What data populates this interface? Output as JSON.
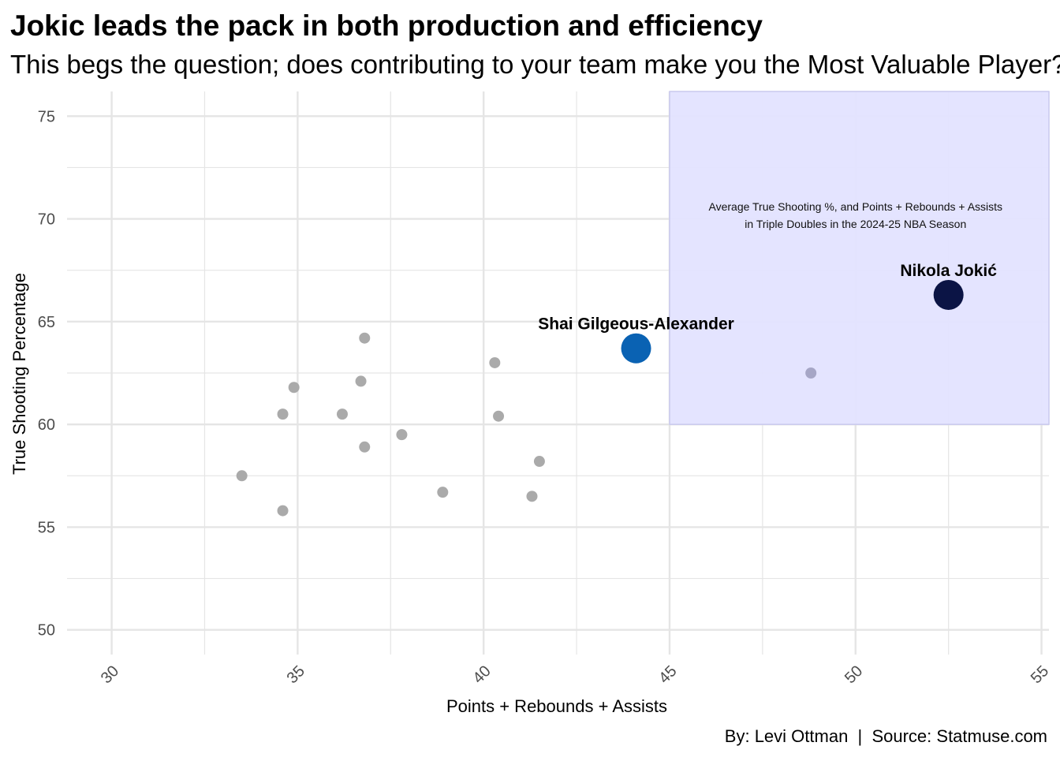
{
  "chart_data": {
    "type": "scatter",
    "title": "Jokic leads the pack in both production and efficiency",
    "subtitle": "This begs the question; does contributing to your team make you the Most Valuable Player?",
    "xlabel": "Points + Rebounds + Assists",
    "ylabel": "True Shooting Percentage",
    "caption": "By: Levi Ottman  |  Source: Statmuse.com",
    "xlim": [
      28.8,
      55.2
    ],
    "ylim": [
      48.8,
      76.2
    ],
    "x_ticks": [
      "30",
      "35",
      "40",
      "45",
      "50",
      "55"
    ],
    "y_ticks": [
      "50",
      "55",
      "60",
      "65",
      "70",
      "75"
    ],
    "grid": true,
    "highlight_region": {
      "x": [
        45,
        55.2
      ],
      "y": [
        60,
        76.2
      ],
      "fill": "#e3e3ff",
      "annotation_lines": [
        "Average True Shooting %, and Points + Rebounds + Assists",
        "in Triple Doubles in the 2024-25 NBA Season"
      ],
      "annotation_x": 50,
      "annotation_y": 70.4
    },
    "highlighted_players": [
      {
        "label": "Nikola Jokić",
        "x": 52.5,
        "y": 66.3,
        "color": "#0b1445",
        "size": "large"
      },
      {
        "label": "Shai Gilgeous-Alexander",
        "x": 44.1,
        "y": 63.7,
        "color": "#0a62b3",
        "size": "large"
      }
    ],
    "points": [
      {
        "x": 33.5,
        "y": 57.5
      },
      {
        "x": 34.6,
        "y": 55.8
      },
      {
        "x": 34.6,
        "y": 60.5
      },
      {
        "x": 34.9,
        "y": 61.8
      },
      {
        "x": 36.2,
        "y": 60.5
      },
      {
        "x": 36.7,
        "y": 62.1
      },
      {
        "x": 36.8,
        "y": 64.2
      },
      {
        "x": 36.8,
        "y": 58.9
      },
      {
        "x": 37.8,
        "y": 59.5
      },
      {
        "x": 38.9,
        "y": 56.7
      },
      {
        "x": 40.3,
        "y": 63.0
      },
      {
        "x": 40.4,
        "y": 60.4
      },
      {
        "x": 41.3,
        "y": 56.5
      },
      {
        "x": 41.5,
        "y": 58.2
      },
      {
        "x": 48.8,
        "y": 62.5
      }
    ],
    "colors": {
      "other_points": "#aaaaaa",
      "points_in_region": "#a6a6c6",
      "grid": "#e5e5e5",
      "tick_text": "#4d4d4d"
    }
  }
}
